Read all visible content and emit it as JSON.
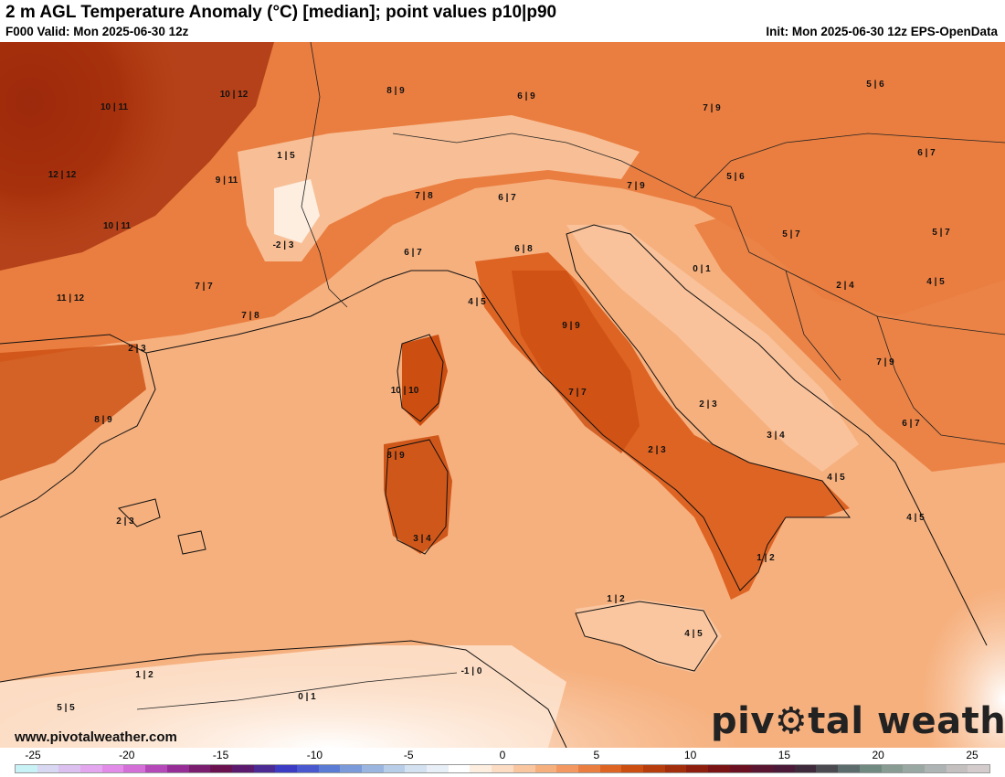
{
  "header": {
    "title": "2 m AGL Temperature Anomaly (°C) [median]; point values p10|p90",
    "valid": "F000 Valid: Mon 2025-06-30 12z",
    "init": "Init: Mon 2025-06-30 12z EPS-OpenData"
  },
  "map": {
    "point_values": [
      "10 | 11",
      "10 | 12",
      "8 | 9",
      "6 | 9",
      "7 | 9",
      "5 | 6",
      "1 | 5",
      "12 | 12",
      "9 | 11",
      "7 | 8",
      "6 | 7",
      "7 | 9",
      "5 | 6",
      "6 | 7",
      "10 | 11",
      "-2 | 3",
      "6 | 7",
      "6 | 8",
      "5 | 7",
      "5 | 7",
      "11 | 12",
      "7 | 7",
      "7 | 8",
      "4 | 5",
      "0 | 1",
      "2 | 4",
      "4 | 5",
      "2 | 3",
      "9 | 9",
      "7 | 9",
      "10 | 10",
      "7 | 7",
      "2 | 3",
      "8 | 9",
      "8 | 9",
      "2 | 3",
      "3 | 4",
      "4 | 5",
      "6 | 7",
      "2 | 3",
      "3 | 4",
      "4 | 5",
      "1 | 2",
      "1 | 2",
      "4 | 5",
      "1 | 2",
      "-1 | 0",
      "0 | 1",
      "5 | 5"
    ]
  },
  "colorbar": {
    "tick_labels": [
      "-25",
      "-20",
      "-15",
      "-10",
      "-5",
      "0",
      "5",
      "10",
      "15",
      "20",
      "25"
    ],
    "colors": [
      "#c9f2f7",
      "#d8d8f2",
      "#dcc0ef",
      "#e3a6ef",
      "#e28be8",
      "#d46fd8",
      "#b548b8",
      "#962d97",
      "#7a1d6f",
      "#6a1250",
      "#5c1a6f",
      "#4b2a94",
      "#3b3bc4",
      "#4a58cf",
      "#5a7bd4",
      "#7b9ad9",
      "#9ab5df",
      "#b8cde7",
      "#d3e1f0",
      "#e9eff7",
      "#ffffff",
      "#fdeee0",
      "#fcdcc3",
      "#f9c6a0",
      "#f6b07e",
      "#f29860",
      "#ea7e40",
      "#de6424",
      "#cc4e10",
      "#b83d0c",
      "#a22e0c",
      "#8e1f0e",
      "#7a1414",
      "#6a1020",
      "#5a1530",
      "#4a1a38",
      "#3e2a3a",
      "#4a4a50",
      "#5c6c6c",
      "#708a82",
      "#889c94",
      "#9aa8a4",
      "#aeb4b4",
      "#c4c0c0",
      "#d4cccc"
    ]
  },
  "watermark": {
    "url": "www.pivotalweather.com",
    "logo_left": "piv",
    "logo_right": "tal weather"
  }
}
